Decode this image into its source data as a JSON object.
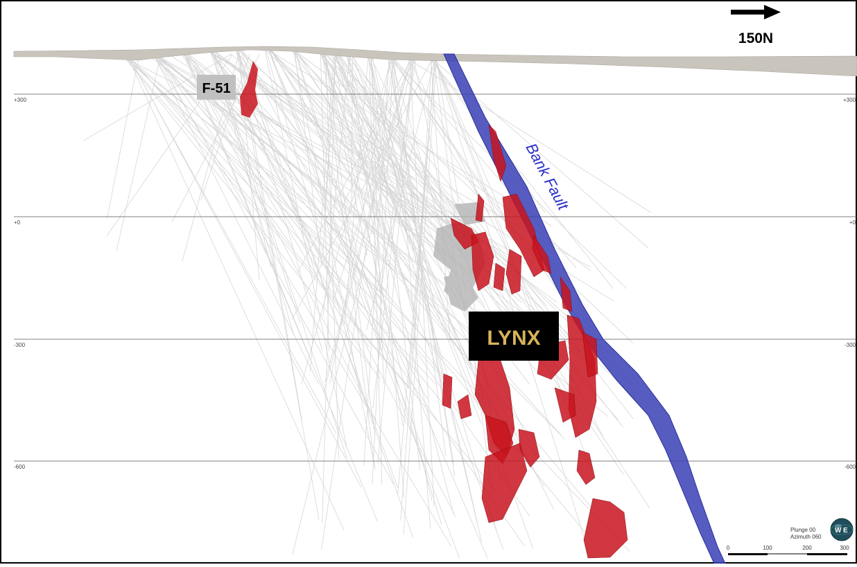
{
  "section": {
    "direction_label": "150N",
    "levels": [
      "+300",
      "+0",
      "-300",
      "-600"
    ],
    "labels": {
      "f51": "F-51",
      "lynx": "LYNX",
      "bank_fault": "Bank Fault"
    }
  },
  "scale_bar": {
    "ticks": [
      "0",
      "100",
      "200",
      "300"
    ]
  },
  "view": {
    "plunge": "Plunge 00",
    "azimuth": "Azimuth 060"
  },
  "compass": {
    "west": "W",
    "east": "E"
  },
  "colors": {
    "fault": "#3a3fb5",
    "orebody": "#c8141e",
    "drillholes": "#c8c8c8",
    "topography": "#c9c5bd",
    "lynx_box": "#000000",
    "lynx_text": "#d7b45a",
    "f51_box": "#c0c0c0"
  }
}
